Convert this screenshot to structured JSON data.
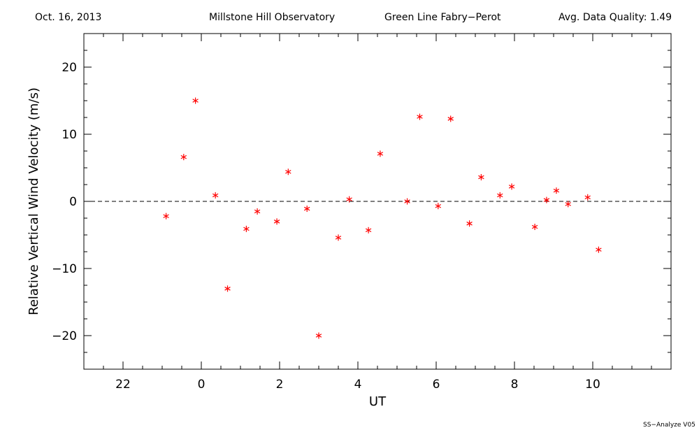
{
  "header": {
    "date": "Oct. 16, 2013",
    "observatory": "Millstone Hill Observatory",
    "instrument": "Green Line Fabry−Perot",
    "quality": "Avg. Data Quality: 1.49"
  },
  "footer": "SS−Analyze V05",
  "chart_data": {
    "type": "scatter",
    "title": "",
    "xlabel": "UT",
    "ylabel": "Relative Vertical Wind Velocity (m/s)",
    "xlim": [
      21,
      36
    ],
    "ylim": [
      -25,
      25
    ],
    "xticks": [
      22,
      24,
      26,
      28,
      30,
      32,
      34
    ],
    "xtick_labels": [
      "22",
      "0",
      "2",
      "4",
      "6",
      "8",
      "10"
    ],
    "yticks": [
      -20,
      -10,
      0,
      10,
      20
    ],
    "ytick_labels": [
      "−20",
      "−10",
      "0",
      "10",
      "20"
    ],
    "reference_line": {
      "y": 0,
      "style": "dashed"
    },
    "marker": "asterisk",
    "marker_color": "#ff0000",
    "series": [
      {
        "x": [
          23.1,
          23.55,
          23.85,
          24.36,
          24.67,
          25.15,
          25.43,
          25.93,
          26.22,
          26.7,
          27.0,
          27.5,
          27.78,
          28.27,
          28.57,
          29.26,
          29.58,
          30.05,
          30.37,
          30.85,
          31.15,
          31.63,
          31.93,
          32.52,
          32.82,
          33.07,
          33.37,
          33.87,
          34.15
        ],
        "y": [
          -2.2,
          6.6,
          15.0,
          0.9,
          -13.0,
          -4.1,
          -1.5,
          -3.0,
          4.4,
          -1.1,
          -20.0,
          -5.4,
          0.3,
          -4.3,
          7.1,
          0.0,
          12.6,
          -0.7,
          12.3,
          -3.3,
          3.6,
          0.9,
          2.2,
          -3.8,
          0.2,
          1.6,
          -0.4,
          0.6,
          -7.2
        ]
      }
    ]
  }
}
